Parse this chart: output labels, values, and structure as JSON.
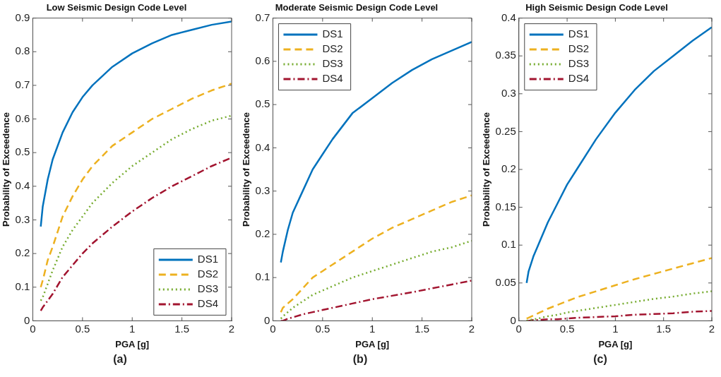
{
  "chart_data": [
    {
      "type": "line",
      "title": "Low Seismic Design Code Level",
      "xlabel": "PGA [g]",
      "ylabel": "Probability of Exceedence",
      "annotations": [
        "(a)"
      ],
      "x": [
        0.08,
        0.1,
        0.15,
        0.2,
        0.3,
        0.4,
        0.5,
        0.6,
        0.8,
        1.0,
        1.2,
        1.4,
        1.6,
        1.8,
        2.0
      ],
      "xlim": [
        0,
        2
      ],
      "xticks": [
        0,
        0.5,
        1,
        1.5,
        2
      ],
      "ylim": [
        0,
        0.9
      ],
      "yticks": [
        0,
        0.1,
        0.2,
        0.3,
        0.4,
        0.5,
        0.6,
        0.7,
        0.8,
        0.9
      ],
      "grid": false,
      "legend": "bottom right",
      "marker": "none",
      "series": [
        {
          "name": "DS1",
          "color": "#0072bd",
          "line_style": "solid",
          "values": [
            0.28,
            0.34,
            0.42,
            0.48,
            0.56,
            0.62,
            0.665,
            0.7,
            0.755,
            0.795,
            0.825,
            0.85,
            0.865,
            0.88,
            0.89
          ]
        },
        {
          "name": "DS2",
          "color": "#edb120",
          "line_style": "dashed",
          "values": [
            0.1,
            0.12,
            0.18,
            0.22,
            0.31,
            0.37,
            0.42,
            0.46,
            0.52,
            0.56,
            0.6,
            0.63,
            0.66,
            0.685,
            0.705
          ]
        },
        {
          "name": "DS3",
          "color": "#77ac30",
          "line_style": "dotted",
          "values": [
            0.06,
            0.07,
            0.11,
            0.15,
            0.22,
            0.27,
            0.31,
            0.35,
            0.41,
            0.46,
            0.5,
            0.54,
            0.57,
            0.595,
            0.61
          ]
        },
        {
          "name": "DS4",
          "color": "#a2142f",
          "line_style": "dashdot",
          "values": [
            0.03,
            0.04,
            0.06,
            0.08,
            0.13,
            0.165,
            0.2,
            0.23,
            0.28,
            0.325,
            0.365,
            0.4,
            0.43,
            0.46,
            0.485
          ]
        }
      ]
    },
    {
      "type": "line",
      "title": "Moderate Seismic Design Code Level",
      "xlabel": "PGA [g]",
      "ylabel": "Probability of Exceedence",
      "annotations": [
        "(b)"
      ],
      "x": [
        0.08,
        0.1,
        0.15,
        0.2,
        0.3,
        0.4,
        0.5,
        0.6,
        0.8,
        1.0,
        1.2,
        1.4,
        1.6,
        1.8,
        2.0
      ],
      "xlim": [
        0,
        2
      ],
      "xticks": [
        0,
        0.5,
        1,
        1.5,
        2
      ],
      "ylim": [
        0,
        0.7
      ],
      "yticks": [
        0,
        0.1,
        0.2,
        0.3,
        0.4,
        0.5,
        0.6,
        0.7
      ],
      "grid": false,
      "legend": "top left",
      "marker": "none",
      "series": [
        {
          "name": "DS1",
          "color": "#0072bd",
          "line_style": "solid",
          "values": [
            0.135,
            0.16,
            0.21,
            0.25,
            0.3,
            0.35,
            0.385,
            0.42,
            0.48,
            0.515,
            0.55,
            0.58,
            0.605,
            0.625,
            0.645
          ]
        },
        {
          "name": "DS2",
          "color": "#edb120",
          "line_style": "dashed",
          "values": [
            0.02,
            0.03,
            0.04,
            0.05,
            0.075,
            0.1,
            0.115,
            0.13,
            0.16,
            0.19,
            0.215,
            0.235,
            0.255,
            0.275,
            0.29
          ]
        },
        {
          "name": "DS3",
          "color": "#77ac30",
          "line_style": "dotted",
          "values": [
            0.005,
            0.01,
            0.02,
            0.03,
            0.045,
            0.06,
            0.07,
            0.08,
            0.1,
            0.115,
            0.13,
            0.145,
            0.16,
            0.17,
            0.185
          ]
        },
        {
          "name": "DS4",
          "color": "#a2142f",
          "line_style": "dashdot",
          "values": [
            0,
            0,
            0.005,
            0.008,
            0.015,
            0.02,
            0.025,
            0.03,
            0.04,
            0.05,
            0.058,
            0.066,
            0.075,
            0.084,
            0.093
          ]
        }
      ]
    },
    {
      "type": "line",
      "title": "High Seismic Design Code Level",
      "xlabel": "PGA [g]",
      "ylabel": "Probability of Exceedence",
      "annotations": [
        "(c)"
      ],
      "x": [
        0.08,
        0.1,
        0.15,
        0.2,
        0.3,
        0.4,
        0.5,
        0.6,
        0.8,
        1.0,
        1.2,
        1.4,
        1.6,
        1.8,
        2.0
      ],
      "xlim": [
        0,
        2
      ],
      "xticks": [
        0,
        0.5,
        1,
        1.5,
        2
      ],
      "ylim": [
        0,
        0.4
      ],
      "yticks": [
        0,
        0.05,
        0.1,
        0.15,
        0.2,
        0.25,
        0.3,
        0.35,
        0.4
      ],
      "grid": false,
      "legend": "top left",
      "marker": "none",
      "series": [
        {
          "name": "DS1",
          "color": "#0072bd",
          "line_style": "solid",
          "values": [
            0.05,
            0.065,
            0.085,
            0.1,
            0.13,
            0.155,
            0.18,
            0.2,
            0.24,
            0.275,
            0.305,
            0.33,
            0.35,
            0.37,
            0.388
          ]
        },
        {
          "name": "DS2",
          "color": "#edb120",
          "line_style": "dashed",
          "values": [
            0.003,
            0.004,
            0.007,
            0.01,
            0.016,
            0.021,
            0.026,
            0.031,
            0.039,
            0.047,
            0.055,
            0.062,
            0.069,
            0.076,
            0.083
          ]
        },
        {
          "name": "DS3",
          "color": "#77ac30",
          "line_style": "dotted",
          "values": [
            0,
            0.001,
            0.002,
            0.003,
            0.006,
            0.008,
            0.011,
            0.013,
            0.017,
            0.021,
            0.025,
            0.029,
            0.032,
            0.036,
            0.039
          ]
        },
        {
          "name": "DS4",
          "color": "#a2142f",
          "line_style": "dashdot",
          "values": [
            0,
            0,
            0.001,
            0.001,
            0.002,
            0.002,
            0.003,
            0.004,
            0.005,
            0.006,
            0.008,
            0.009,
            0.01,
            0.012,
            0.013
          ]
        }
      ]
    }
  ]
}
